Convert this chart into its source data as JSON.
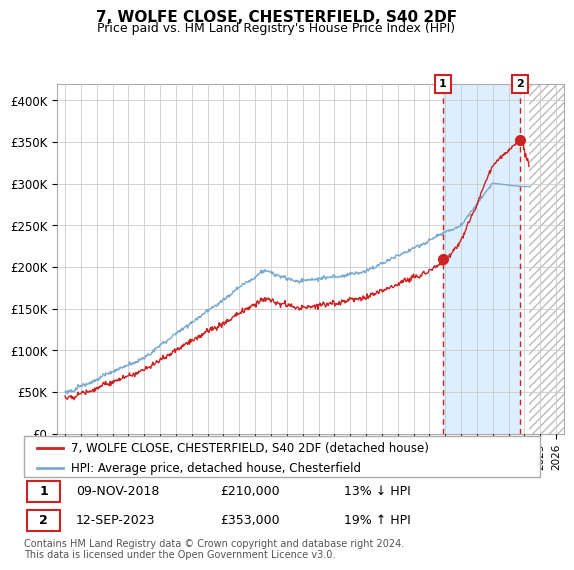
{
  "title": "7, WOLFE CLOSE, CHESTERFIELD, S40 2DF",
  "subtitle": "Price paid vs. HM Land Registry's House Price Index (HPI)",
  "background_color": "#ffffff",
  "plot_bg_color": "#ffffff",
  "grid_color": "#cccccc",
  "hpi_color": "#7aaad0",
  "price_color": "#cc2222",
  "shade_color": "#ddeeff",
  "ylim": [
    0,
    420000
  ],
  "yticks": [
    0,
    50000,
    100000,
    150000,
    200000,
    250000,
    300000,
    350000,
    400000
  ],
  "ytick_labels": [
    "£0",
    "£50K",
    "£100K",
    "£150K",
    "£200K",
    "£250K",
    "£300K",
    "£350K",
    "£400K"
  ],
  "sale1_date": "09-NOV-2018",
  "sale1_price": 210000,
  "sale1_pct": "13% ↓ HPI",
  "sale1_year": 2018.86,
  "sale2_date": "12-SEP-2023",
  "sale2_price": 353000,
  "sale2_pct": "19% ↑ HPI",
  "sale2_year": 2023.71,
  "legend_line1": "7, WOLFE CLOSE, CHESTERFIELD, S40 2DF (detached house)",
  "legend_line2": "HPI: Average price, detached house, Chesterfield",
  "footnote": "Contains HM Land Registry data © Crown copyright and database right 2024.\nThis data is licensed under the Open Government Licence v3.0.",
  "xmin": 1994.5,
  "xmax": 2026.5,
  "data_end_year": 2024.3,
  "hatch_color": "#bbbbbb"
}
